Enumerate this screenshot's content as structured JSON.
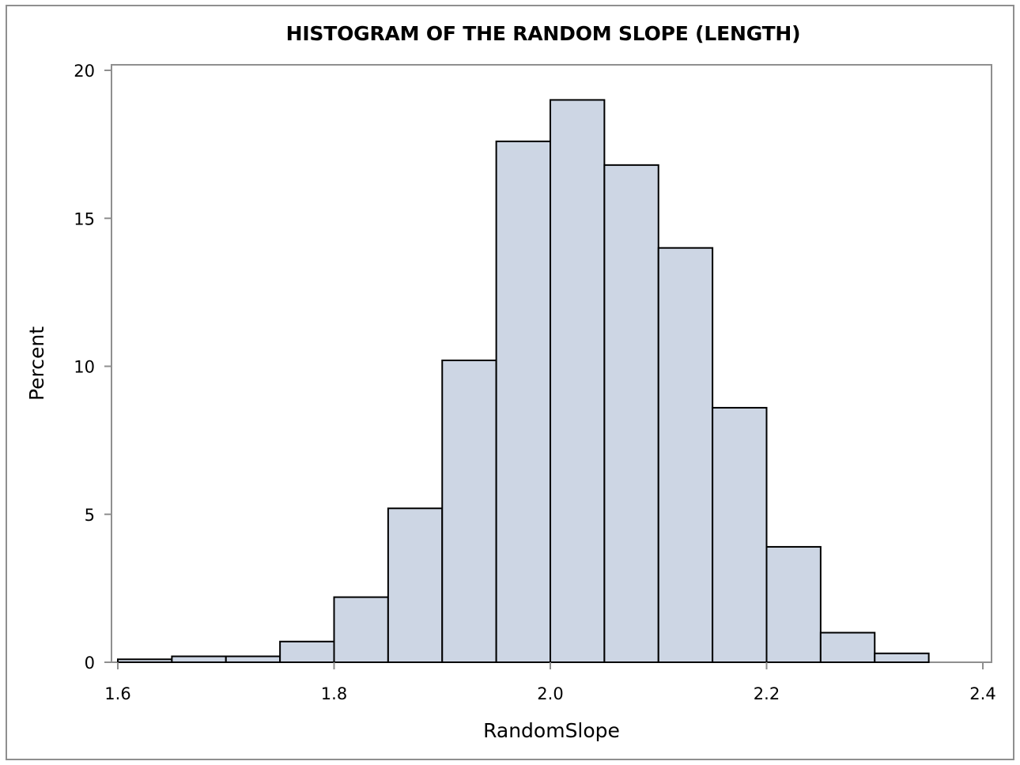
{
  "chart_data": {
    "type": "bar",
    "title": "HISTOGRAM OF THE RANDOM SLOPE (LENGTH)",
    "xlabel": "RandomSlope",
    "ylabel": "Percent",
    "xlim": [
      1.6,
      2.4
    ],
    "ylim": [
      0,
      20
    ],
    "x_ticks": [
      "1.6",
      "1.8",
      "2.0",
      "2.2",
      "2.4"
    ],
    "y_ticks": [
      "0",
      "5",
      "10",
      "15",
      "20"
    ],
    "bin_width": 0.05,
    "bins": [
      {
        "start": 1.6,
        "end": 1.65,
        "value": 0.1
      },
      {
        "start": 1.65,
        "end": 1.7,
        "value": 0.2
      },
      {
        "start": 1.7,
        "end": 1.75,
        "value": 0.2
      },
      {
        "start": 1.75,
        "end": 1.8,
        "value": 0.7
      },
      {
        "start": 1.8,
        "end": 1.85,
        "value": 2.2
      },
      {
        "start": 1.85,
        "end": 1.9,
        "value": 5.2
      },
      {
        "start": 1.9,
        "end": 1.95,
        "value": 10.2
      },
      {
        "start": 1.95,
        "end": 2.0,
        "value": 17.6
      },
      {
        "start": 2.0,
        "end": 2.05,
        "value": 19.0
      },
      {
        "start": 2.05,
        "end": 2.1,
        "value": 16.8
      },
      {
        "start": 2.1,
        "end": 2.15,
        "value": 14.0
      },
      {
        "start": 2.15,
        "end": 2.2,
        "value": 8.6
      },
      {
        "start": 2.2,
        "end": 2.25,
        "value": 3.9
      },
      {
        "start": 2.25,
        "end": 2.3,
        "value": 1.0
      },
      {
        "start": 2.3,
        "end": 2.35,
        "value": 0.3
      }
    ],
    "grid": false,
    "legend": "none",
    "colors": {
      "bar_fill": "#cdd6e4",
      "bar_stroke": "#000000",
      "axis": "#8f8f8f"
    }
  }
}
